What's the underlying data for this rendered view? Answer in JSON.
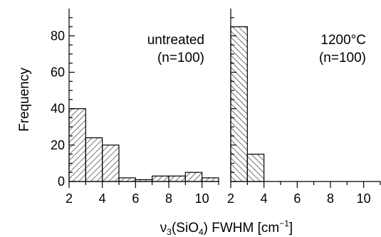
{
  "chart_data": [
    {
      "type": "bar",
      "panel": "left",
      "annotation": [
        "untreated",
        "(n=100)"
      ],
      "bin_edges": [
        2,
        3,
        4,
        5,
        6,
        7,
        8,
        9,
        10,
        11
      ],
      "values": [
        40,
        24,
        20,
        2,
        1,
        3,
        3,
        5,
        2
      ],
      "hatch": "forward",
      "xlim": [
        2,
        11
      ],
      "ylim": [
        0,
        95
      ],
      "xticks": [
        "2",
        "4",
        "6",
        "8",
        "10"
      ],
      "yticks": [
        "0",
        "20",
        "40",
        "60",
        "80"
      ],
      "ylabel": "Frequency"
    },
    {
      "type": "bar",
      "panel": "right",
      "annotation": [
        "1200°C",
        "(n=100)"
      ],
      "bin_edges": [
        2,
        3,
        4,
        5,
        6,
        7,
        8,
        9,
        10,
        11
      ],
      "values": [
        85,
        15,
        0,
        0,
        0,
        0,
        0,
        0,
        0
      ],
      "hatch": "backward",
      "xlim": [
        2,
        11
      ],
      "ylim": [
        0,
        95
      ],
      "xticks": [
        "2",
        "4",
        "6",
        "8",
        "10"
      ]
    }
  ],
  "xlabel": {
    "prefix": "ν",
    "sub": "3",
    "middle": "(SiO",
    "sub2": "4",
    "suffix": ") FWHM  [cm",
    "sup": "−1",
    "end": "]"
  }
}
